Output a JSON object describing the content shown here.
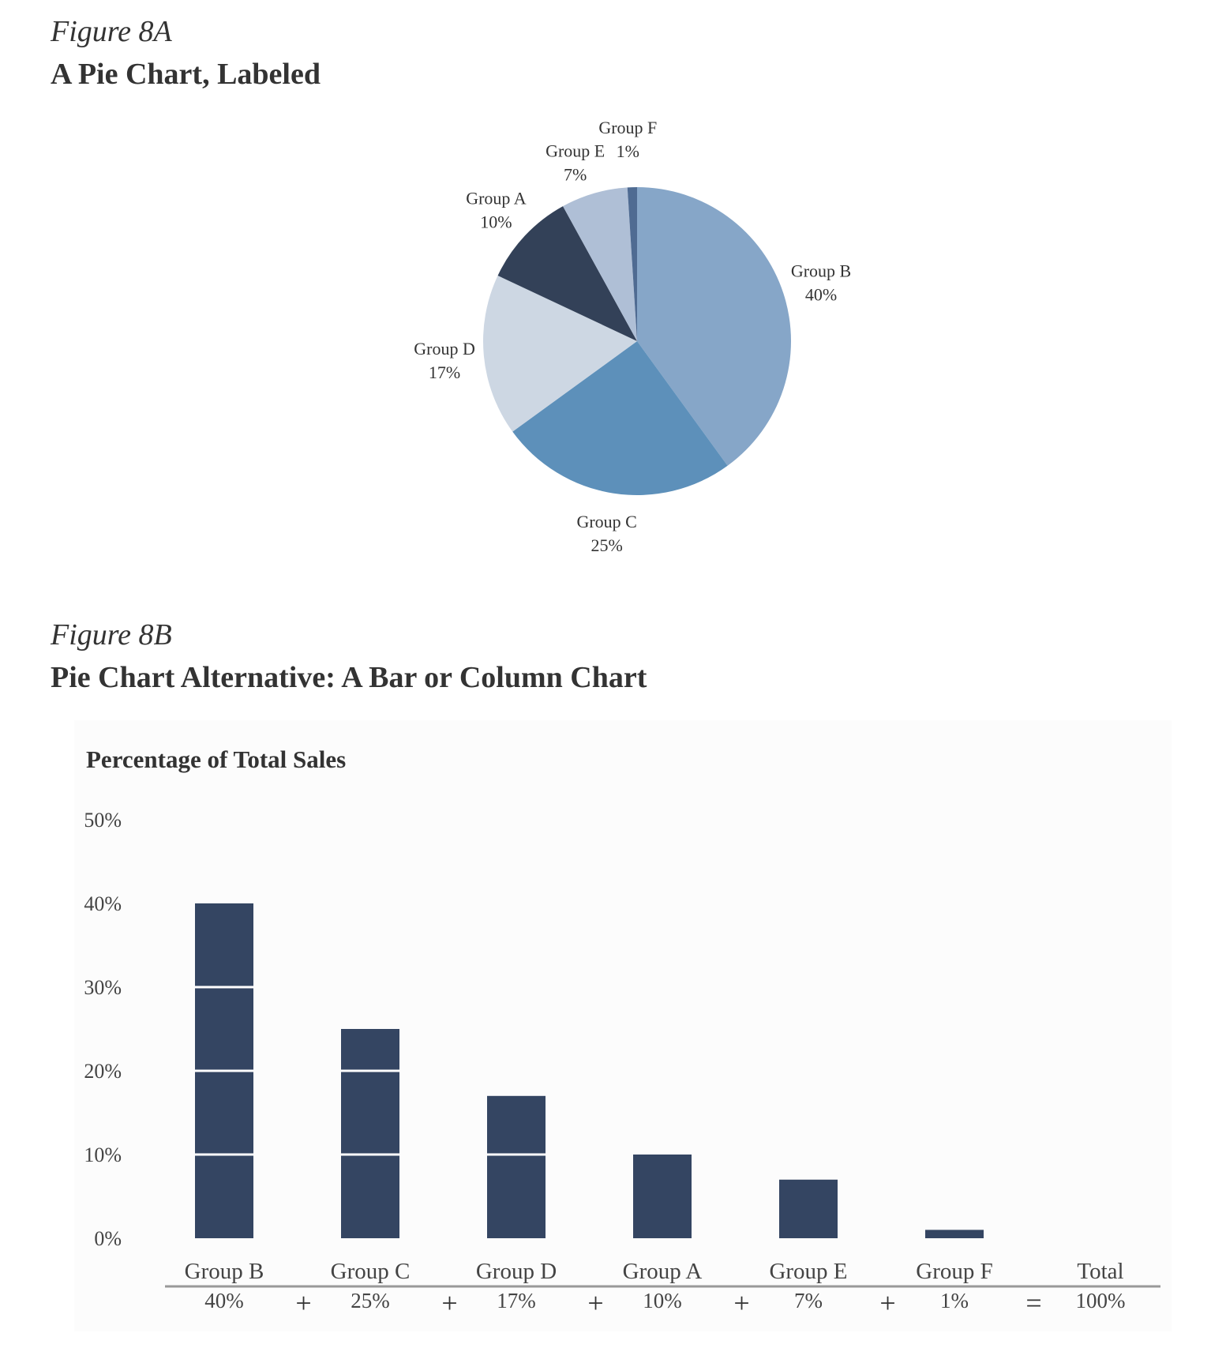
{
  "figure_a": {
    "label": "Figure 8A",
    "title": "A Pie Chart, Labeled"
  },
  "figure_b": {
    "label": "Figure 8B",
    "title": "Pie Chart Alternative: A Bar or Column Chart"
  },
  "chart_data": [
    {
      "type": "pie",
      "title": "",
      "slices": [
        {
          "label": "Group B",
          "value": 40,
          "value_label": "40%",
          "color": "#86a6c8"
        },
        {
          "label": "Group C",
          "value": 25,
          "value_label": "25%",
          "color": "#5d90ba"
        },
        {
          "label": "Group D",
          "value": 17,
          "value_label": "17%",
          "color": "#cdd7e3"
        },
        {
          "label": "Group A",
          "value": 10,
          "value_label": "10%",
          "color": "#334158"
        },
        {
          "label": "Group E",
          "value": 7,
          "value_label": "7%",
          "color": "#afbfd6"
        },
        {
          "label": "Group F",
          "value": 1,
          "value_label": "1%",
          "color": "#4f6b92"
        }
      ],
      "start": "12 o'clock",
      "direction": "clockwise"
    },
    {
      "type": "bar",
      "title": "Percentage of Total Sales",
      "categories": [
        "Group B",
        "Group C",
        "Group D",
        "Group A",
        "Group E",
        "Group F"
      ],
      "values": [
        40,
        25,
        17,
        10,
        7,
        1
      ],
      "value_labels": [
        "40%",
        "25%",
        "17%",
        "10%",
        "7%",
        "1%"
      ],
      "ylim": [
        0,
        50
      ],
      "yticks": [
        "0%",
        "10%",
        "20%",
        "30%",
        "40%",
        "50%"
      ],
      "bar_color": "#344562",
      "grid": "white lines across bars at every 10%",
      "operators": [
        "+",
        "+",
        "+",
        "+",
        "+",
        "="
      ],
      "total": {
        "label": "Total",
        "value_label": "100%"
      }
    }
  ]
}
